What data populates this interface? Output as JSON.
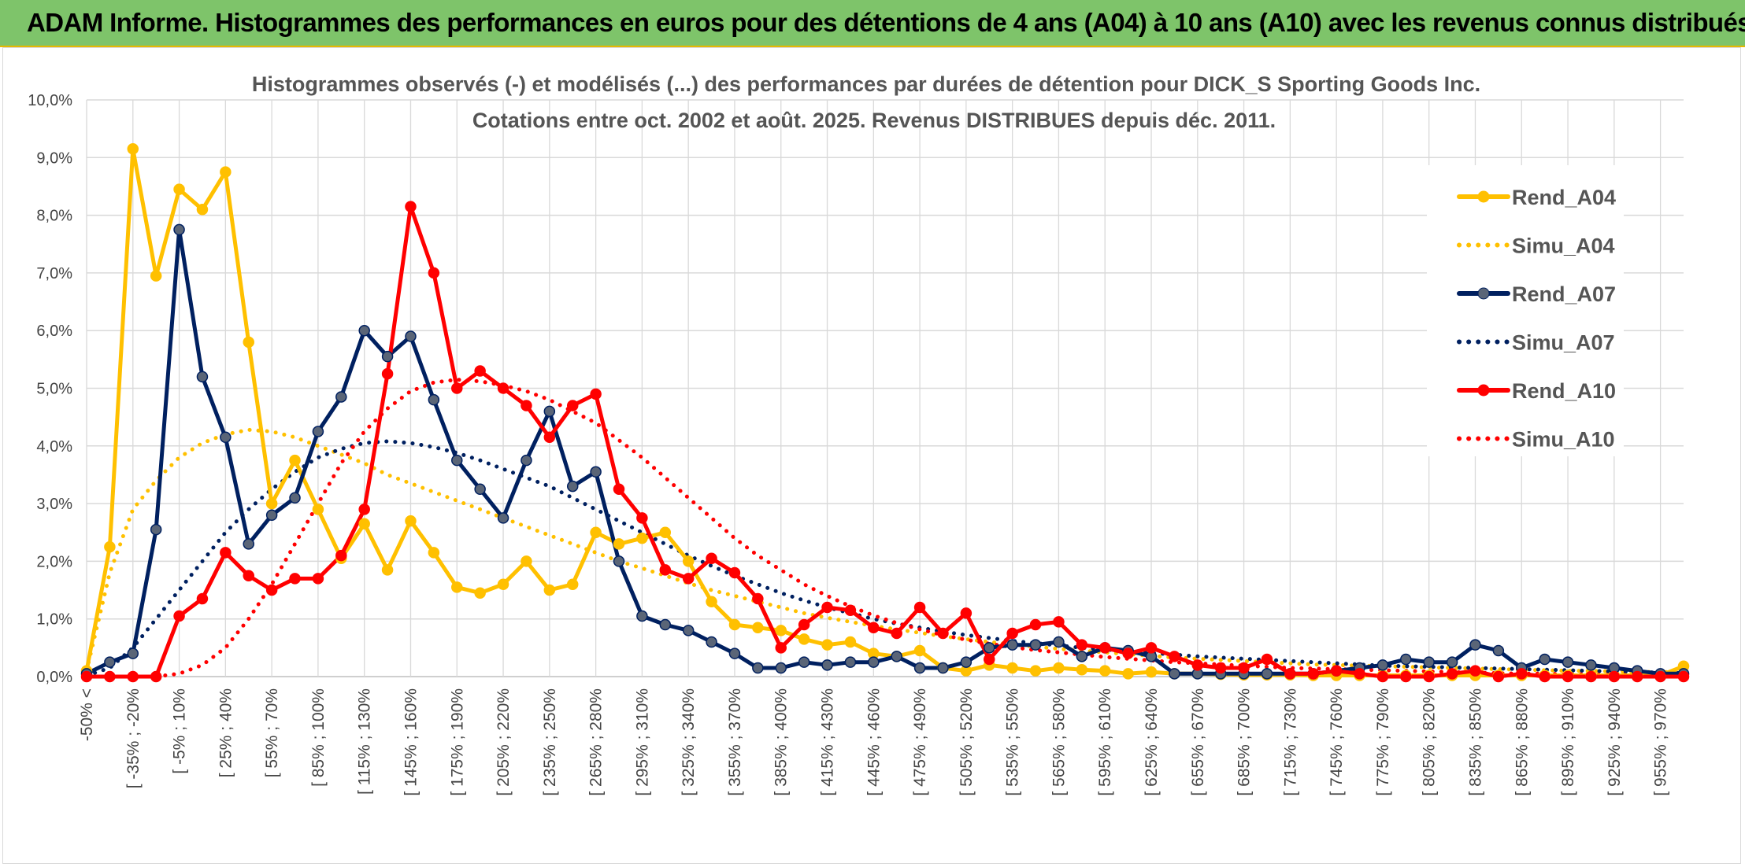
{
  "banner": {
    "title": "ADAM Informe. Histogrammes des performances en euros pour des détentions de 4 ans (A04) à 10 ans (A10) avec les revenus connus distribués"
  },
  "colors": {
    "A04": "#ffc000",
    "A07": "#002060",
    "A10": "#ff0000",
    "banner": "#7ec46a",
    "grid": "#d9d9d9"
  },
  "chart_data": {
    "type": "line",
    "title_line1": "Histogrammes observés (-) et modélisés (...) des performances par durées de détention pour DICK_S Sporting Goods Inc.",
    "title_line2": "Cotations entre oct. 2002 et août. 2025. Revenus DISTRIBUES depuis déc. 2011.",
    "ylim": [
      0,
      10
    ],
    "y_ticks": [
      "0,0%",
      "1,0%",
      "2,0%",
      "3,0%",
      "4,0%",
      "5,0%",
      "6,0%",
      "7,0%",
      "8,0%",
      "9,0%",
      "10,0%"
    ],
    "grid": true,
    "legend_position": "right",
    "x_tick_labels": [
      "-50% <",
      "[ -35% ; -20%",
      "[ -5% ; 10%",
      "[ 25% ; 40%",
      "[ 55% ; 70%",
      "[ 85% ; 100%",
      "[ 115% ; 130%",
      "[ 145% ; 160%",
      "[ 175% ; 190%",
      "[ 205% ; 220%",
      "[ 235% ; 250%",
      "[ 265% ; 280%",
      "[ 295% ; 310%",
      "[ 325% ; 340%",
      "[ 355% ; 370%",
      "[ 385% ; 400%",
      "[ 415% ; 430%",
      "[ 445% ; 460%",
      "[ 475% ; 490%",
      "[ 505% ; 520%",
      "[ 535% ; 550%",
      "[ 565% ; 580%",
      "[ 595% ; 610%",
      "[ 625% ; 640%",
      "[ 655% ; 670%",
      "[ 685% ; 700%",
      "[ 715% ; 730%",
      "[ 745% ; 760%",
      "[ 775% ; 790%",
      "[ 805% ; 820%",
      "[ 835% ; 850%",
      "[ 865% ; 880%",
      "[ 895% ; 910%",
      "[ 925% ; 940%",
      "[ 955% ; 970%"
    ],
    "series": [
      {
        "name": "Rend_A04",
        "style": "solid",
        "color": "#ffc000",
        "values": [
          0.1,
          2.25,
          9.15,
          6.95,
          8.45,
          8.1,
          8.75,
          5.8,
          3.0,
          3.75,
          2.9,
          2.05,
          2.65,
          1.85,
          2.7,
          2.15,
          1.55,
          1.45,
          1.6,
          2.0,
          1.5,
          1.6,
          2.5,
          2.3,
          2.4,
          2.5,
          2.0,
          1.3,
          0.9,
          0.85,
          0.8,
          0.65,
          0.55,
          0.6,
          0.4,
          0.35,
          0.45,
          0.15,
          0.1,
          0.2,
          0.15,
          0.1,
          0.15,
          0.12,
          0.1,
          0.05,
          0.08,
          0.05,
          0.05,
          0.04,
          0.03,
          0.03,
          0.03,
          0.02,
          0.02,
          0.02,
          0.02,
          0.02,
          0.02,
          0.02,
          0.02,
          0.02,
          0.02,
          0.02,
          0.02,
          0.02,
          0.02,
          0.02,
          0.02,
          0.18
        ]
      },
      {
        "name": "Simu_A04",
        "style": "dotted",
        "color": "#ffc000",
        "values": [
          0.1,
          1.8,
          2.9,
          3.4,
          3.8,
          4.05,
          4.2,
          4.28,
          4.25,
          4.15,
          4.0,
          3.85,
          3.7,
          3.5,
          3.35,
          3.2,
          3.05,
          2.9,
          2.75,
          2.6,
          2.45,
          2.3,
          2.15,
          2.0,
          1.88,
          1.75,
          1.62,
          1.5,
          1.4,
          1.3,
          1.2,
          1.1,
          1.02,
          0.95,
          0.88,
          0.82,
          0.76,
          0.7,
          0.65,
          0.6,
          0.56,
          0.52,
          0.48,
          0.45,
          0.42,
          0.39,
          0.36,
          0.33,
          0.31,
          0.29,
          0.27,
          0.25,
          0.23,
          0.21,
          0.2,
          0.19,
          0.18,
          0.17,
          0.16,
          0.15,
          0.14,
          0.13,
          0.12,
          0.11,
          0.1,
          0.1,
          0.09,
          0.08,
          0.08,
          0.07
        ]
      },
      {
        "name": "Rend_A07",
        "style": "solid",
        "color": "#002060",
        "values": [
          0.05,
          0.25,
          0.4,
          2.55,
          7.75,
          5.2,
          4.15,
          2.3,
          2.8,
          3.1,
          4.25,
          4.85,
          6.0,
          5.55,
          5.9,
          4.8,
          3.75,
          3.25,
          2.75,
          3.75,
          4.6,
          3.3,
          3.55,
          2.0,
          1.05,
          0.9,
          0.8,
          0.6,
          0.4,
          0.15,
          0.15,
          0.25,
          0.2,
          0.25,
          0.25,
          0.35,
          0.15,
          0.15,
          0.25,
          0.5,
          0.55,
          0.55,
          0.6,
          0.35,
          0.5,
          0.45,
          0.35,
          0.05,
          0.05,
          0.05,
          0.05,
          0.05,
          0.05,
          0.05,
          0.1,
          0.15,
          0.2,
          0.3,
          0.25,
          0.25,
          0.55,
          0.45,
          0.15,
          0.3,
          0.25,
          0.2,
          0.15,
          0.1,
          0.05,
          0.05
        ]
      },
      {
        "name": "Simu_A07",
        "style": "dotted",
        "color": "#002060",
        "values": [
          0.02,
          0.15,
          0.5,
          1.0,
          1.5,
          2.0,
          2.5,
          2.9,
          3.25,
          3.55,
          3.8,
          3.95,
          4.05,
          4.08,
          4.05,
          3.98,
          3.88,
          3.75,
          3.6,
          3.45,
          3.3,
          3.1,
          2.9,
          2.7,
          2.5,
          2.3,
          2.1,
          1.92,
          1.75,
          1.6,
          1.45,
          1.32,
          1.2,
          1.1,
          1.0,
          0.92,
          0.85,
          0.78,
          0.72,
          0.67,
          0.62,
          0.58,
          0.54,
          0.5,
          0.47,
          0.44,
          0.41,
          0.38,
          0.35,
          0.33,
          0.31,
          0.29,
          0.27,
          0.25,
          0.23,
          0.21,
          0.19,
          0.18,
          0.17,
          0.16,
          0.15,
          0.14,
          0.13,
          0.12,
          0.11,
          0.1,
          0.09,
          0.08,
          0.07,
          0.06
        ]
      },
      {
        "name": "Rend_A10",
        "style": "solid",
        "color": "#ff0000",
        "values": [
          0.0,
          0.0,
          0.0,
          0.0,
          1.05,
          1.35,
          2.15,
          1.75,
          1.5,
          1.7,
          1.7,
          2.1,
          2.9,
          5.25,
          8.15,
          7.0,
          5.0,
          5.3,
          5.0,
          4.7,
          4.15,
          4.7,
          4.9,
          3.25,
          2.75,
          1.85,
          1.7,
          2.05,
          1.8,
          1.35,
          0.5,
          0.9,
          1.2,
          1.15,
          0.85,
          0.75,
          1.2,
          0.75,
          1.1,
          0.3,
          0.75,
          0.9,
          0.95,
          0.55,
          0.5,
          0.4,
          0.5,
          0.35,
          0.2,
          0.15,
          0.15,
          0.3,
          0.05,
          0.05,
          0.1,
          0.05,
          0.0,
          0.0,
          0.0,
          0.05,
          0.1,
          0.0,
          0.05,
          0.0,
          0.0,
          0.0,
          0.0,
          0.0,
          0.0,
          0.0
        ]
      },
      {
        "name": "Simu_A10",
        "style": "dotted",
        "color": "#ff0000",
        "values": [
          0.0,
          0.0,
          0.0,
          0.0,
          0.05,
          0.2,
          0.5,
          1.0,
          1.6,
          2.3,
          3.0,
          3.7,
          4.25,
          4.65,
          4.95,
          5.1,
          5.15,
          5.12,
          5.05,
          4.95,
          4.8,
          4.6,
          4.4,
          4.1,
          3.8,
          3.45,
          3.1,
          2.75,
          2.4,
          2.1,
          1.85,
          1.6,
          1.4,
          1.22,
          1.06,
          0.93,
          0.82,
          0.72,
          0.64,
          0.57,
          0.51,
          0.46,
          0.42,
          0.38,
          0.34,
          0.31,
          0.28,
          0.25,
          0.23,
          0.21,
          0.19,
          0.17,
          0.15,
          0.14,
          0.13,
          0.12,
          0.11,
          0.1,
          0.09,
          0.08,
          0.07,
          0.06,
          0.05,
          0.05,
          0.04,
          0.04,
          0.03,
          0.03,
          0.02,
          0.02
        ]
      }
    ]
  }
}
